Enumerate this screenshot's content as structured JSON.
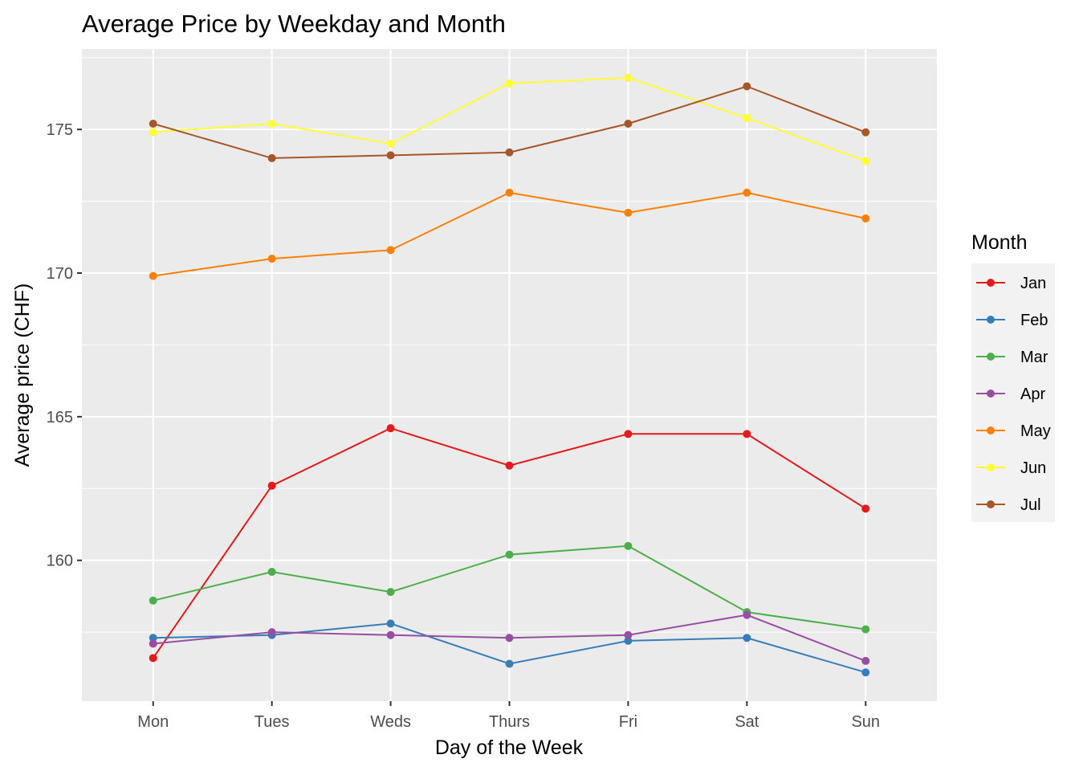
{
  "chart_data": {
    "type": "line",
    "title": "Average Price by Weekday and Month",
    "xlabel": "Day of the Week",
    "ylabel": "Average price (CHF)",
    "categories": [
      "Mon",
      "Tues",
      "Weds",
      "Thurs",
      "Fri",
      "Sat",
      "Sun"
    ],
    "ylim": [
      155.1,
      177.8
    ],
    "yticks": [
      160,
      165,
      170,
      175
    ],
    "grid": true,
    "legend": {
      "title": "Month",
      "position": "right"
    },
    "series": [
      {
        "name": "Jan",
        "color": "#E41A1C",
        "values": [
          156.6,
          162.6,
          164.6,
          163.3,
          164.4,
          164.4,
          161.8
        ]
      },
      {
        "name": "Feb",
        "color": "#377EB8",
        "values": [
          157.3,
          157.4,
          157.8,
          156.4,
          157.2,
          157.3,
          156.1
        ]
      },
      {
        "name": "Mar",
        "color": "#4DAF4A",
        "values": [
          158.6,
          159.6,
          158.9,
          160.2,
          160.5,
          158.2,
          157.6
        ]
      },
      {
        "name": "Apr",
        "color": "#984EA3",
        "values": [
          157.1,
          157.5,
          157.4,
          157.3,
          157.4,
          158.1,
          156.5
        ]
      },
      {
        "name": "May",
        "color": "#FF7F00",
        "values": [
          169.9,
          170.5,
          170.8,
          172.8,
          172.1,
          172.8,
          171.9
        ]
      },
      {
        "name": "Jun",
        "color": "#FFFF33",
        "values": [
          174.9,
          175.2,
          174.5,
          176.6,
          176.8,
          175.4,
          173.9
        ]
      },
      {
        "name": "Jul",
        "color": "#A65628",
        "values": [
          175.2,
          174.0,
          174.1,
          174.2,
          175.2,
          176.5,
          174.9
        ]
      }
    ]
  }
}
